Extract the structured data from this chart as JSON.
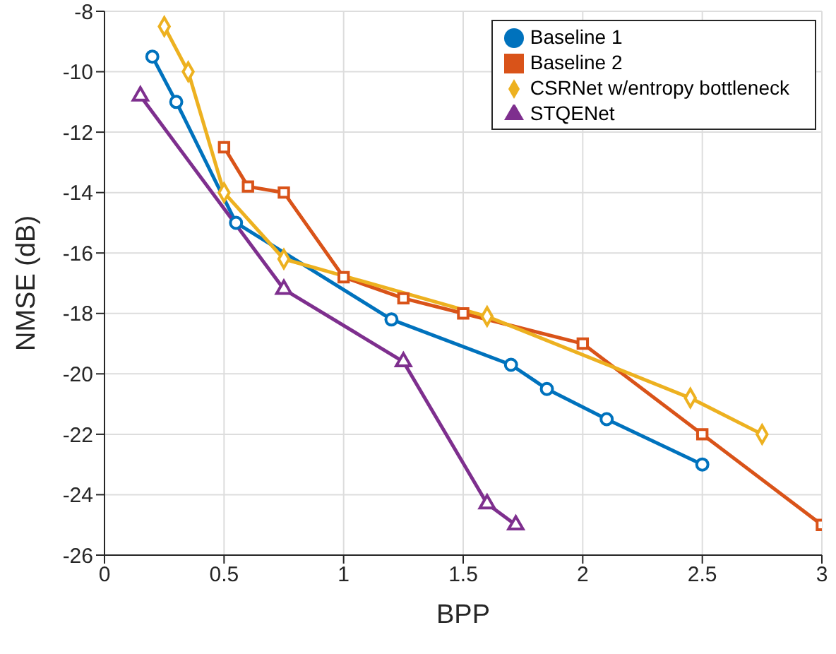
{
  "chart_data": {
    "type": "line",
    "xlabel": "BPP",
    "ylabel": "NMSE (dB)",
    "xlim": [
      0,
      3
    ],
    "xticks": [
      0,
      0.5,
      1,
      1.5,
      2,
      2.5,
      3
    ],
    "ylim": [
      -26,
      -8
    ],
    "yticks": [
      -26,
      -24,
      -22,
      -20,
      -18,
      -16,
      -14,
      -12,
      -10,
      -8
    ],
    "grid": true,
    "legend": "top right",
    "line_style": "solid",
    "series": [
      {
        "name": "Baseline 1",
        "color": "#0072bd",
        "marker": "circle",
        "x": [
          0.2,
          0.3,
          0.55,
          1.2,
          1.7,
          1.85,
          2.1,
          2.5
        ],
        "values": [
          -9.5,
          -11,
          -15,
          -18.2,
          -19.7,
          -20.5,
          -21.5,
          -23
        ]
      },
      {
        "name": "Baseline 2",
        "color": "#d95319",
        "marker": "square",
        "x": [
          0.5,
          0.6,
          0.75,
          1.0,
          1.25,
          1.5,
          2.0,
          2.5,
          3.0
        ],
        "values": [
          -12.5,
          -13.8,
          -14,
          -16.8,
          -17.5,
          -18,
          -19,
          -22,
          -25
        ]
      },
      {
        "name": "CSRNet w/entropy bottleneck",
        "color": "#edb120",
        "marker": "diamond",
        "x": [
          0.25,
          0.35,
          0.5,
          0.75,
          1.6,
          2.45,
          2.75
        ],
        "values": [
          -8.5,
          -10,
          -14,
          -16.2,
          -18.1,
          -20.8,
          -22
        ]
      },
      {
        "name": "STQENet",
        "color": "#7e2f8e",
        "marker": "triangle",
        "x": [
          0.15,
          0.75,
          1.25,
          1.6,
          1.72
        ],
        "values": [
          -10.8,
          -17.2,
          -19.6,
          -24.3,
          -25
        ]
      }
    ]
  }
}
